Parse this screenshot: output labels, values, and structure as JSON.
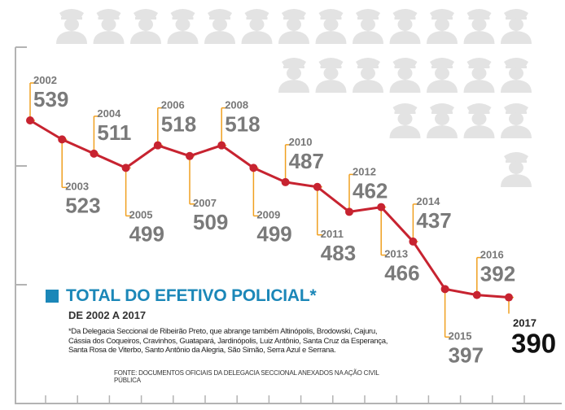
{
  "colors": {
    "line": "#c72330",
    "leader": "#f0a020",
    "year": "#777777",
    "value": "#7a7a7a",
    "last_value": "#111111",
    "accent": "#1b87b8",
    "icons": "#e3e3e3",
    "axis": "#b3b3b3"
  },
  "legend": {
    "title": "TOTAL DO EFETIVO POLICIAL*",
    "subtitle": "DE 2002 A 2017",
    "note": "*Da Delegacia Seccional de Ribeirão Preto, que abrange também Altinópolis, Brodowski, Cajuru, Cássia dos Coqueiros, Cravinhos, Guatapará, Jardinópolis, Luiz Antônio, Santa Cruz da Esperança, Santa Rosa de Viterbo, Santo Antônio da Alegria, São Simão, Serra Azul e Serrana.",
    "source": "FONTE: DOCUMENTOS OFICIAIS DA DELEGACIA SECCIONAL ANEXADOS NA AÇÃO CIVIL PÚBLICA"
  },
  "background_icon": "police-officer-icon",
  "chart_data": {
    "type": "line",
    "title": "TOTAL DO EFETIVO POLICIAL*",
    "subtitle": "DE 2002 A 2017",
    "x": [
      "2002",
      "2003",
      "2004",
      "2005",
      "2006",
      "2007",
      "2008",
      "2009",
      "2010",
      "2011",
      "2012",
      "2013",
      "2014",
      "2015",
      "2016",
      "2017"
    ],
    "series": [
      {
        "values": [
          539,
          523,
          511,
          499,
          518,
          509,
          518,
          499,
          487,
          483,
          462,
          466,
          437,
          397,
          392,
          390
        ]
      }
    ],
    "ylim": [
      360,
      550
    ],
    "grid": false,
    "legend_position": "bottom-left"
  }
}
